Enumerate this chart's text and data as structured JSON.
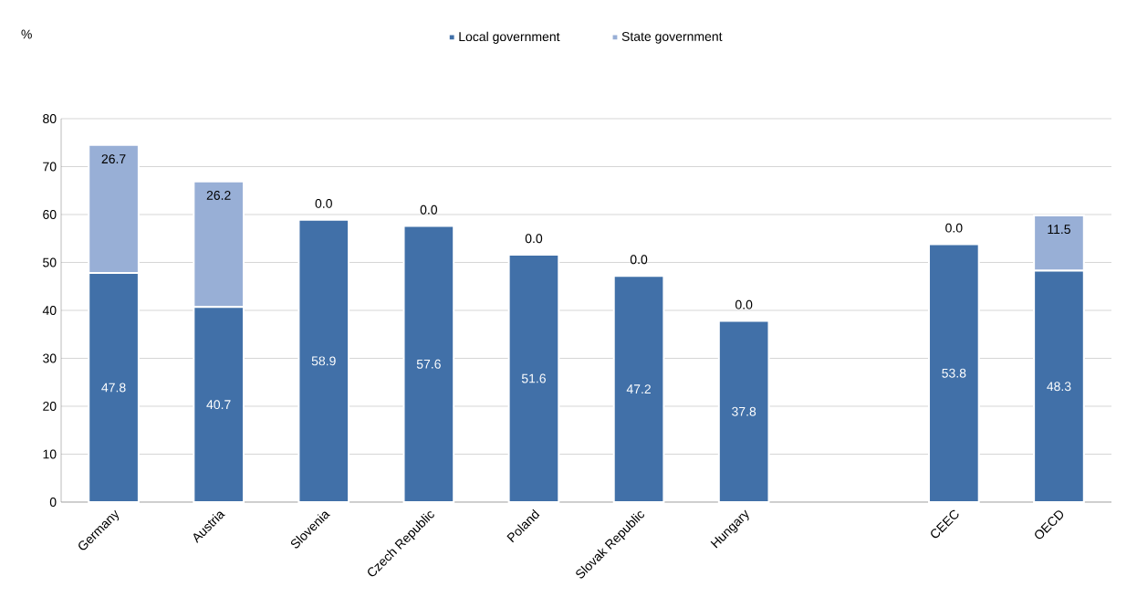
{
  "chart_data": {
    "type": "bar",
    "stacked": true,
    "annotations": [
      "%"
    ],
    "categories": [
      "Germany",
      "Austria",
      "Slovenia",
      "Czech Republic",
      "Poland",
      "Slovak Republic",
      "Hungary",
      null,
      "CEEC",
      "OECD"
    ],
    "series": [
      {
        "name": "Local government",
        "color": "#4170a8",
        "values": [
          47.8,
          40.7,
          58.9,
          57.6,
          51.6,
          47.2,
          37.8,
          null,
          53.8,
          48.3
        ],
        "value_labels": [
          "47.8",
          "40.7",
          "58.9",
          "57.6",
          "51.6",
          "47.2",
          "37.8",
          null,
          "53.8",
          "48.3"
        ]
      },
      {
        "name": "State government",
        "color": "#98afd6",
        "values": [
          26.7,
          26.2,
          0.0,
          0.0,
          0.0,
          0.0,
          0.0,
          null,
          0.0,
          11.5
        ],
        "value_labels": [
          "26.7",
          "26.2",
          "0.0",
          "0.0",
          "0.0",
          "0.0",
          "0.0",
          null,
          "0.0",
          "11.5"
        ]
      }
    ],
    "ylim": [
      0,
      80
    ],
    "yticks": [
      0,
      10,
      20,
      30,
      40,
      50,
      60,
      70,
      80
    ],
    "grid": "y",
    "legend": "top"
  }
}
